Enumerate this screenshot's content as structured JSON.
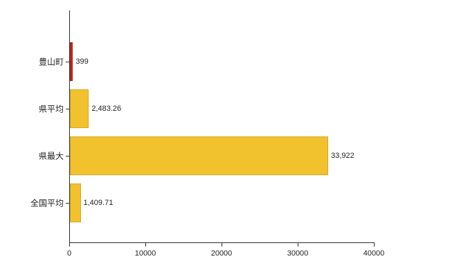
{
  "chart_data": {
    "type": "bar",
    "orientation": "horizontal",
    "title": "",
    "xlabel": "",
    "ylabel": "",
    "categories": [
      "豊山町",
      "県平均",
      "県最大",
      "全国平均"
    ],
    "values": [
      399,
      2483.26,
      33922,
      1409.71
    ],
    "value_labels": [
      "399",
      "2,483.26",
      "33,922",
      "1,409.71"
    ],
    "bar_colors": [
      "#c5281c",
      "#f2c12e",
      "#f2c12e",
      "#f2c12e"
    ],
    "xlim": [
      0,
      40000
    ],
    "x_ticks": [
      0,
      10000,
      20000,
      30000,
      40000
    ],
    "x_tick_labels": [
      "0",
      "10000",
      "20000",
      "30000",
      "40000"
    ],
    "grid": false,
    "legend": null,
    "axis_color": "#2b2b2b",
    "background_color": "#ffffff"
  }
}
